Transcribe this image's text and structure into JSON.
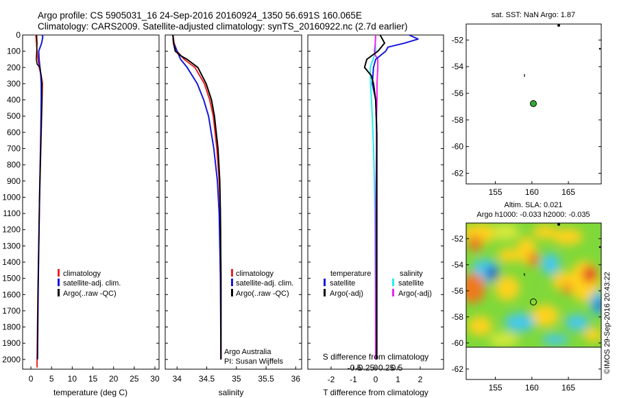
{
  "header": {
    "line1": "Argo profile: CS 5905031_16 24-Sep-2016 20160924_1350 56.691S 160.065E",
    "line2": "Climatology: CARS2009. Satellite-adjusted climatology: synTS_20160922.nc (2.7d earlier)"
  },
  "colors": {
    "climatology": "#ee2222",
    "satellite": "#1515dd",
    "argo": "#000000",
    "salinity_satellite": "#22eeee",
    "salinity_argo": "#ee22ee",
    "marker": "#33aa33"
  },
  "depth_ticks": [
    "0",
    "100",
    "200",
    "300",
    "400",
    "500",
    "600",
    "700",
    "800",
    "900",
    "1000",
    "1100",
    "1200",
    "1300",
    "1400",
    "1500",
    "1600",
    "1700",
    "1800",
    "1900",
    "2000"
  ],
  "panels": {
    "temperature": {
      "xlabel": "temperature (deg C)",
      "xticks": [
        "0",
        "5",
        "10",
        "15",
        "20",
        "25",
        "30"
      ],
      "legend": [
        "climatology",
        "satellite-adj. clim.",
        "Argo(..raw -QC)"
      ]
    },
    "salinity": {
      "xlabel": "salinity",
      "xticks": [
        "34",
        "34.5",
        "35",
        "35.5",
        "36"
      ],
      "legend": [
        "climatology",
        "satellite-adj. clim.",
        "Argo(..raw -QC)"
      ],
      "credit1": "Argo Australia",
      "credit2": "PI: Susan Wijffels"
    },
    "difference": {
      "xlabel": "T difference from climatology",
      "s_label": "S difference from climatology",
      "s_ticks": [
        "-0.5",
        "-0.25",
        "0",
        "0.25",
        "0.5"
      ],
      "t_ticks": [
        "-2",
        "-1",
        "0",
        "1",
        "2"
      ],
      "legend_temp_title": "temperature",
      "legend_sal_title": "salinity",
      "legend_temp": [
        "satellite",
        "Argo(-adj)"
      ],
      "legend_sal": [
        "satellite",
        "Argo(-adj)"
      ]
    },
    "sst_map": {
      "title": "sat. SST: NaN Argo: 1.87",
      "yticks": [
        "-52",
        "-54",
        "-56",
        "-58",
        "-60",
        "-62"
      ],
      "xticks": [
        "155",
        "160",
        "165"
      ]
    },
    "sla_map": {
      "title1": "Altim. SLA: 0.021",
      "title2": "Argo h1000: -0.033 h2000: -0.035",
      "yticks": [
        "-52",
        "-54",
        "-56",
        "-58",
        "-60",
        "-62"
      ],
      "xticks": [
        "155",
        "160",
        "165"
      ]
    }
  },
  "watermark": "©IMOS 29-Sep-2016 20:43:22",
  "chart_data": [
    {
      "type": "line",
      "title": "",
      "xlabel": "temperature (deg C)",
      "ylabel": "",
      "xlim": [
        -2,
        31
      ],
      "ylim": [
        2060,
        0
      ],
      "series": [
        {
          "name": "climatology",
          "depth": [
            0,
            100,
            150,
            200,
            250,
            300,
            400,
            500,
            700,
            1000,
            1300,
            1600,
            2000,
            2050
          ],
          "values": [
            1.2,
            1.5,
            1.7,
            2.0,
            2.5,
            2.8,
            2.7,
            2.6,
            2.4,
            2.1,
            1.9,
            1.7,
            1.5,
            1.5
          ]
        },
        {
          "name": "satellite-adj. clim.",
          "depth": [
            0,
            10,
            50,
            100,
            150,
            200,
            250,
            300,
            400,
            600,
            1000,
            1500,
            2000
          ],
          "values": [
            2.7,
            2.9,
            2.6,
            1.9,
            2.0,
            2.2,
            2.4,
            2.5,
            2.5,
            2.4,
            2.1,
            1.8,
            1.6
          ]
        },
        {
          "name": "Argo(..raw -QC)",
          "depth": [
            0,
            50,
            100,
            150,
            180,
            200,
            250,
            300,
            400,
            500,
            700,
            1000,
            1300,
            1600,
            1900,
            2000
          ],
          "values": [
            1.4,
            1.5,
            1.4,
            1.3,
            1.5,
            2.2,
            2.5,
            2.7,
            2.7,
            2.6,
            2.4,
            2.1,
            1.9,
            1.7,
            1.6,
            1.6
          ]
        }
      ]
    },
    {
      "type": "line",
      "title": "",
      "xlabel": "salinity",
      "ylabel": "",
      "xlim": [
        33.8,
        36.1
      ],
      "ylim": [
        2060,
        0
      ],
      "series": [
        {
          "name": "climatology",
          "depth": [
            0,
            50,
            100,
            150,
            200,
            300,
            400,
            500,
            700,
            900,
            1100,
            1500,
            2000
          ],
          "values": [
            33.93,
            33.95,
            34.0,
            34.12,
            34.3,
            34.46,
            34.55,
            34.61,
            34.67,
            34.71,
            34.73,
            34.74,
            34.74
          ]
        },
        {
          "name": "satellite-adj. clim.",
          "depth": [
            0,
            50,
            100,
            150,
            200,
            300,
            400,
            500,
            700,
            900,
            1100,
            1500,
            2000
          ],
          "values": [
            33.93,
            33.94,
            34.0,
            34.06,
            34.17,
            34.34,
            34.45,
            34.53,
            34.62,
            34.68,
            34.71,
            34.73,
            34.74
          ]
        },
        {
          "name": "Argo(..raw -QC)",
          "depth": [
            0,
            50,
            100,
            130,
            150,
            200,
            300,
            400,
            500,
            700,
            900,
            1100,
            1500,
            2000
          ],
          "values": [
            33.93,
            33.94,
            33.97,
            34.07,
            34.17,
            34.35,
            34.49,
            34.58,
            34.63,
            34.69,
            34.72,
            34.73,
            34.74,
            34.74
          ]
        }
      ]
    },
    {
      "type": "line",
      "title": "",
      "xlabel": "T difference from climatology",
      "ylabel": "",
      "xlim": [
        -2.5,
        2.5
      ],
      "ylim": [
        2060,
        0
      ],
      "series": [
        {
          "name": "satellite",
          "depth": [
            0,
            25,
            50,
            75,
            100,
            150,
            200,
            300,
            400,
            600,
            1000,
            1500,
            2000
          ],
          "values": [
            1.5,
            1.9,
            1.3,
            0.55,
            0.45,
            0.0,
            -0.1,
            -0.15,
            0.0,
            0.05,
            0.05,
            0.05,
            0.05
          ]
        },
        {
          "name": "Argo(-adj)",
          "depth": [
            0,
            50,
            100,
            150,
            200,
            250,
            300,
            400,
            600,
            1000,
            1500,
            2000
          ],
          "values": [
            0.2,
            0.4,
            0.1,
            -0.4,
            -0.5,
            -0.2,
            -0.1,
            0.0,
            0.05,
            0.05,
            0.05,
            0.05
          ]
        }
      ]
    },
    {
      "type": "scatter",
      "title": "sat. SST: NaN Argo: 1.87",
      "xlabel": "",
      "ylabel": "",
      "xlim": [
        151,
        169.5
      ],
      "ylim": [
        -62.8,
        -50.8
      ],
      "points": [
        {
          "lon": 160.065,
          "lat": -56.691
        }
      ]
    },
    {
      "type": "heatmap",
      "title": "Altim. SLA: 0.021",
      "xlabel": "",
      "ylabel": "",
      "xlim": [
        151,
        169.5
      ],
      "ylim": [
        -62.8,
        -50.8
      ],
      "points": [
        {
          "lon": 160.065,
          "lat": -56.691
        }
      ]
    }
  ]
}
